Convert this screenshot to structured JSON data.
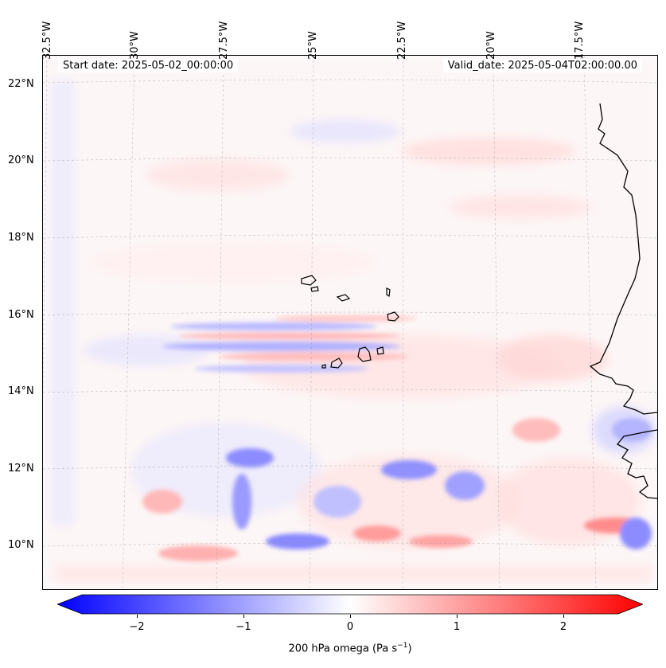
{
  "header": {
    "start_date": "Start date: 2025-05-02_00:00:00",
    "valid_date": "Valid_date: 2025-05-04T02:00:00.00"
  },
  "axes": {
    "longitude_labels": [
      "32.5°W",
      "30°W",
      "27.5°W",
      "25°W",
      "22.5°W",
      "20°W",
      "17.5°W"
    ],
    "latitude_labels": [
      "22°N",
      "20°N",
      "18°N",
      "16°N",
      "14°N",
      "12°N",
      "10°N"
    ]
  },
  "colorbar": {
    "ticks": [
      "−2",
      "−1",
      "0",
      "1",
      "2"
    ],
    "tick_values": [
      -2,
      -1,
      0,
      1,
      2
    ],
    "range": [
      -2.6,
      2.6
    ],
    "title_prefix": "200 hPa omega (Pa s",
    "title_exp": "−1",
    "title_suffix": ")",
    "negative_color": "#0000ff",
    "neutral_color": "#ffffff",
    "positive_color": "#ff0000"
  },
  "map": {
    "variable": "200 hPa omega",
    "units": "Pa s−1",
    "land_features": [
      "Cape Verde islands",
      "West African coastline"
    ]
  }
}
